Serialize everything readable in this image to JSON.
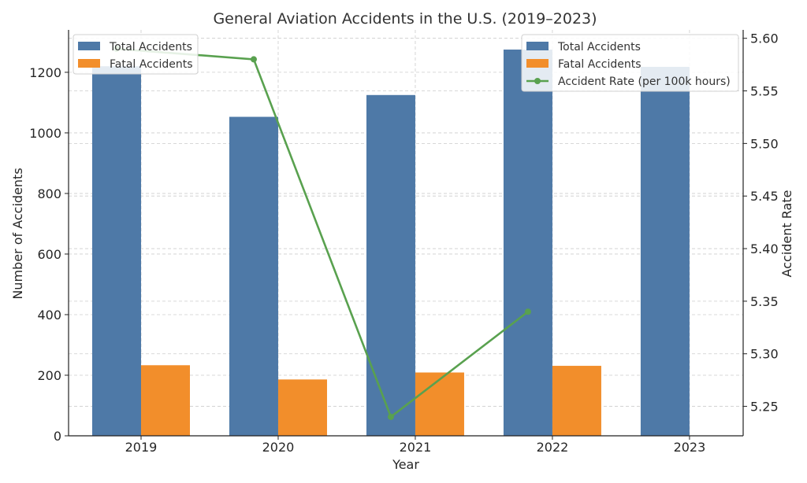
{
  "chart_data": {
    "type": "bar",
    "title": "General Aviation Accidents in the U.S. (2019–2023)",
    "xlabel": "Year",
    "ylabel": "Number of Accidents",
    "y2label": "Accident Rate",
    "categories": [
      "2019",
      "2020",
      "2021",
      "2022",
      "2023"
    ],
    "ylim": [
      0,
      1340
    ],
    "y2lim": [
      5.222,
      5.608
    ],
    "yticks": [
      0,
      200,
      400,
      600,
      800,
      1000,
      1200
    ],
    "y2ticks": [
      "5.25",
      "5.30",
      "5.35",
      "5.40",
      "5.45",
      "5.50",
      "5.55",
      "5.60"
    ],
    "grid": true,
    "series": [
      {
        "name": "Total Accidents",
        "kind": "bar",
        "axis": "left",
        "color": "#4e79a7",
        "values": [
          1220,
          1053,
          1125,
          1275,
          1218
        ]
      },
      {
        "name": "Fatal Accidents",
        "kind": "bar",
        "axis": "left",
        "color": "#f28e2b",
        "values": [
          233,
          186,
          209,
          231,
          null
        ]
      },
      {
        "name": "Accident Rate (per 100k hours)",
        "kind": "line",
        "axis": "right",
        "color": "#59a14f",
        "values": [
          5.59,
          5.58,
          5.24,
          5.34,
          null
        ]
      }
    ],
    "legends": {
      "left_top": [
        "Total Accidents",
        "Fatal Accidents"
      ],
      "right_top": [
        "Total Accidents",
        "Fatal Accidents",
        "Accident Rate (per 100k hours)"
      ]
    }
  }
}
